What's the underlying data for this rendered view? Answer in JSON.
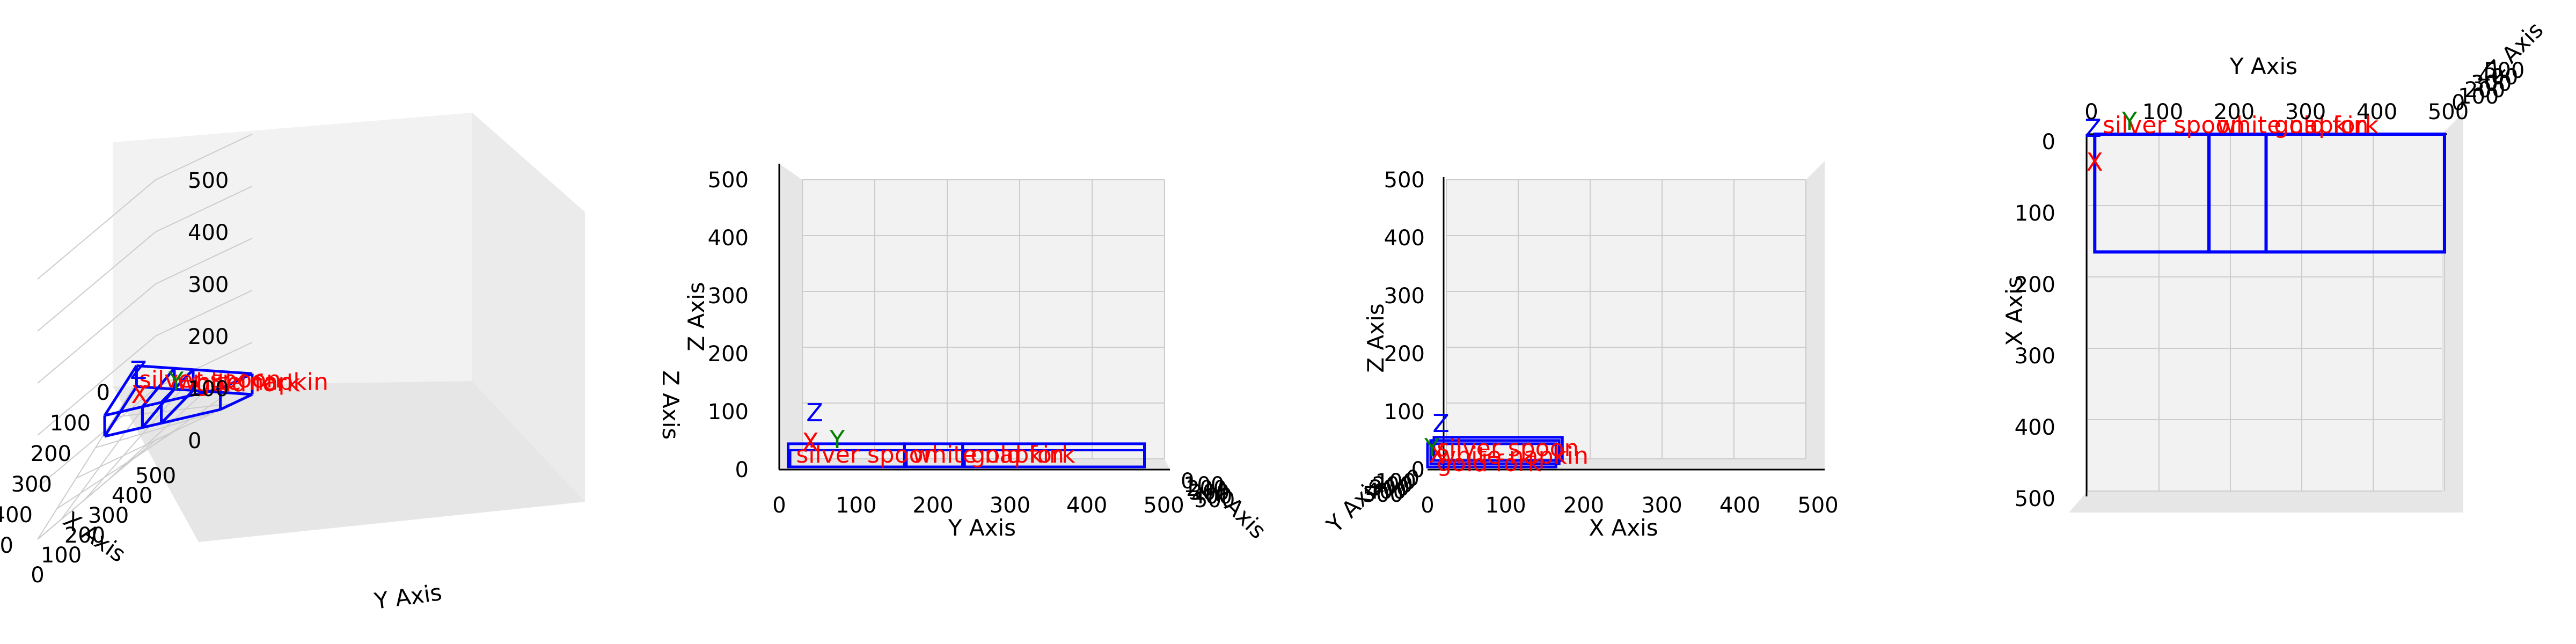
{
  "chart_data": {
    "type": "3d-wireframe",
    "axis_labels": {
      "x": "X Axis",
      "y": "Y Axis",
      "z": "Z Axis"
    },
    "ticks": [
      0,
      100,
      200,
      300,
      400,
      500
    ],
    "xlim": [
      0,
      500
    ],
    "ylim": [
      0,
      500
    ],
    "zlim": [
      0,
      500
    ],
    "grid": true,
    "views": [
      "perspective",
      "front (Y-Z)",
      "side (X-Z)",
      "top (X-Y)"
    ],
    "boxes": [
      {
        "name": "silver spoon",
        "x": [
          0,
          165
        ],
        "y": [
          10,
          170
        ],
        "z": [
          0,
          40
        ]
      },
      {
        "name": "white napkin",
        "x": [
          0,
          165
        ],
        "y": [
          170,
          250
        ],
        "z": [
          0,
          40
        ]
      },
      {
        "name": "gold fork",
        "x": [
          0,
          165
        ],
        "y": [
          250,
          500
        ],
        "z": [
          0,
          40
        ]
      }
    ],
    "origin_axis_letters": [
      "X",
      "Y",
      "Z"
    ],
    "colors": {
      "box": "#0000ff",
      "label": "#ff0000",
      "axis_x": "#ff0000",
      "axis_y": "#008000",
      "axis_z": "#0000ff",
      "pane": "#f2f2f2",
      "grid": "#cccccc"
    }
  }
}
